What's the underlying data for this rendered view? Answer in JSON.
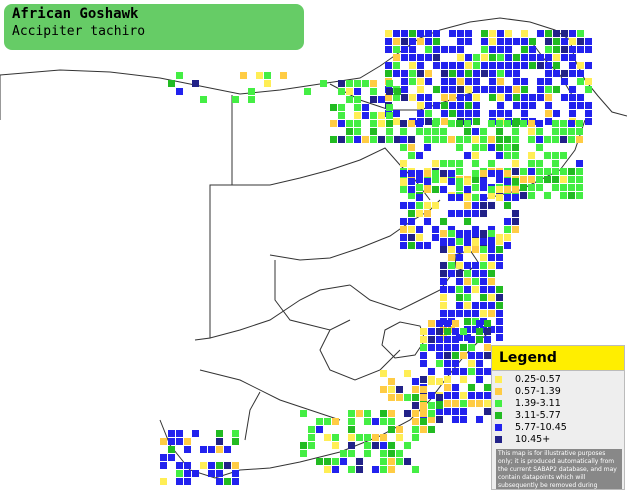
{
  "title": {
    "common_name": "African Goshawk",
    "scientific_name": "Accipiter tachiro"
  },
  "legend": {
    "heading": "Legend",
    "items": [
      {
        "label": "0.25-0.57",
        "color": "#ffee55"
      },
      {
        "label": "0.57-1.39",
        "color": "#ffcc44"
      },
      {
        "label": "1.39-3.11",
        "color": "#44ee44"
      },
      {
        "label": "3.11-5.77",
        "color": "#22bb22"
      },
      {
        "label": "5.77-10.45",
        "color": "#2222ee"
      },
      {
        "label": "10.45+",
        "color": "#222288"
      }
    ],
    "disclaimer": "This map is for illustrative purposes only; it is produced automatically from the current SABAP2 database, and may contain datapoints which will subsequently be removed during checking operations."
  },
  "map": {
    "background": "#ffffff",
    "border_color": "#333333"
  }
}
